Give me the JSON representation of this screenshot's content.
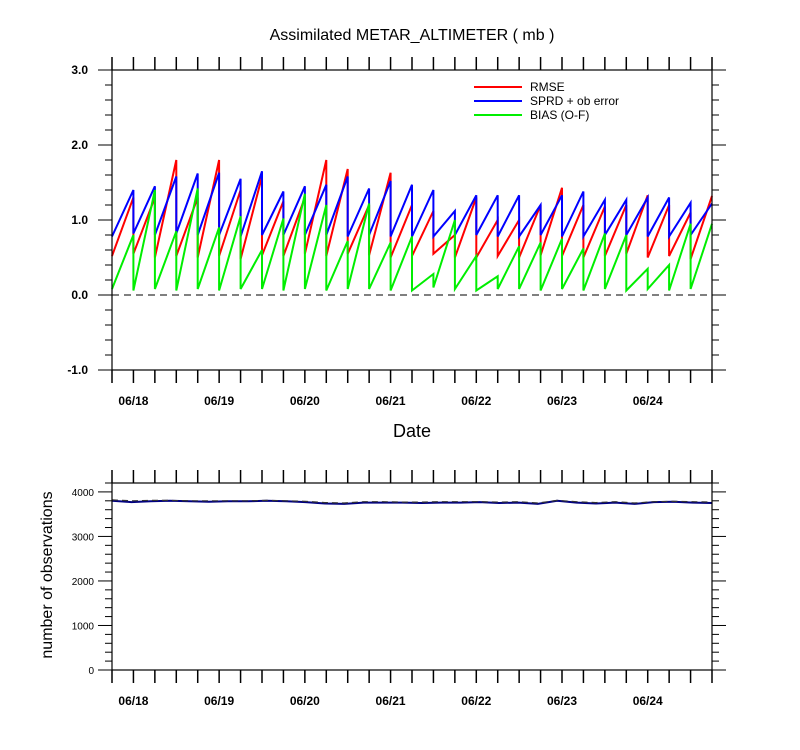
{
  "chart_data": [
    {
      "type": "line",
      "title": "Assimilated METAR_ALTIMETER ( mb )",
      "xlabel": "Date",
      "ylabel": "",
      "ylim": [
        -1.0,
        3.0
      ],
      "ytick_labels": [
        "3.0",
        "2.0",
        "1.0",
        "0.0",
        "-1.0"
      ],
      "ytick_values": [
        3.0,
        2.0,
        1.0,
        0.0,
        -1.0
      ],
      "xtick_labels": [
        "06/18",
        "06/19",
        "06/20",
        "06/21",
        "06/22",
        "06/23",
        "06/24"
      ],
      "reference_line": {
        "y": 0.0,
        "style": "dashed"
      },
      "legend_position": "top-right",
      "series": [
        {
          "name": "RMSE",
          "color": "#ff0000",
          "cycle_low": [
            0.52,
            0.55,
            0.5,
            0.52,
            0.5,
            0.52,
            0.48,
            0.53,
            0.52,
            0.55,
            0.52,
            0.55,
            0.53,
            0.5,
            0.52,
            0.55,
            0.5,
            0.5,
            0.52,
            0.5,
            0.53,
            0.52,
            0.5,
            0.52,
            0.55,
            0.5,
            0.52,
            0.48
          ],
          "cycle_high": [
            1.3,
            1.3,
            1.8,
            1.3,
            1.8,
            1.4,
            1.58,
            1.25,
            1.3,
            1.8,
            1.68,
            1.2,
            1.63,
            1.2,
            1.12,
            0.8,
            1.3,
            1.0,
            1.0,
            1.2,
            1.43,
            1.2,
            1.18,
            1.2,
            1.33,
            1.2,
            1.1,
            1.32
          ]
        },
        {
          "name": "SPRD + ob error",
          "color": "#0000ff",
          "cycle_low": [
            0.78,
            0.82,
            0.8,
            0.82,
            0.8,
            0.8,
            0.78,
            0.8,
            0.8,
            0.8,
            0.8,
            0.78,
            0.8,
            0.78,
            0.78,
            0.78,
            0.8,
            0.8,
            0.78,
            0.78,
            0.8,
            0.78,
            0.78,
            0.8,
            0.8,
            0.78,
            0.78,
            0.8
          ],
          "cycle_high": [
            1.4,
            1.45,
            1.58,
            1.62,
            1.63,
            1.55,
            1.65,
            1.38,
            1.45,
            1.47,
            1.58,
            1.42,
            1.52,
            1.47,
            1.4,
            1.12,
            1.33,
            1.33,
            1.33,
            1.2,
            1.33,
            1.38,
            1.27,
            1.27,
            1.3,
            1.3,
            1.23,
            1.22
          ]
        },
        {
          "name": "BIAS (O-F)",
          "color": "#00ee00",
          "cycle_low": [
            0.08,
            0.06,
            0.08,
            0.06,
            0.08,
            0.06,
            0.08,
            0.08,
            0.06,
            0.08,
            0.06,
            0.08,
            0.08,
            0.06,
            0.06,
            0.1,
            0.08,
            0.06,
            0.08,
            0.08,
            0.06,
            0.08,
            0.06,
            0.08,
            0.06,
            0.08,
            0.06,
            0.08
          ],
          "cycle_high": [
            0.8,
            1.4,
            0.85,
            1.42,
            0.9,
            1.05,
            0.6,
            1.02,
            1.35,
            1.2,
            0.72,
            1.22,
            0.7,
            0.78,
            0.28,
            1.0,
            0.52,
            0.25,
            0.65,
            0.7,
            0.75,
            0.62,
            0.82,
            0.8,
            0.35,
            0.4,
            0.95,
            0.95
          ]
        }
      ]
    },
    {
      "type": "line",
      "title": "",
      "xlabel": "",
      "ylabel": "number of observations",
      "ylim": [
        0,
        4200
      ],
      "ytick_labels": [
        "4000",
        "3000",
        "2000",
        "1000",
        "0"
      ],
      "ytick_values": [
        4000,
        3000,
        2000,
        1000,
        0
      ],
      "xtick_labels": [
        "06/18",
        "06/19",
        "06/20",
        "06/21",
        "06/22",
        "06/23",
        "06/24"
      ],
      "series": [
        {
          "color": "#000080",
          "style": "solid",
          "values": [
            3800,
            3770,
            3790,
            3800,
            3790,
            3780,
            3790,
            3790,
            3800,
            3790,
            3770,
            3740,
            3730,
            3760,
            3760,
            3760,
            3750,
            3760,
            3760,
            3770,
            3750,
            3760,
            3730,
            3800,
            3760,
            3740,
            3760,
            3730,
            3770,
            3780,
            3760,
            3750
          ]
        },
        {
          "color": "#333333",
          "style": "dashed",
          "values": [
            3820,
            3800,
            3810,
            3810,
            3800,
            3800,
            3800,
            3800,
            3810,
            3800,
            3790,
            3760,
            3750,
            3780,
            3780,
            3770,
            3770,
            3780,
            3780,
            3780,
            3770,
            3780,
            3750,
            3810,
            3780,
            3760,
            3780,
            3750,
            3780,
            3790,
            3780,
            3770
          ]
        }
      ]
    }
  ]
}
